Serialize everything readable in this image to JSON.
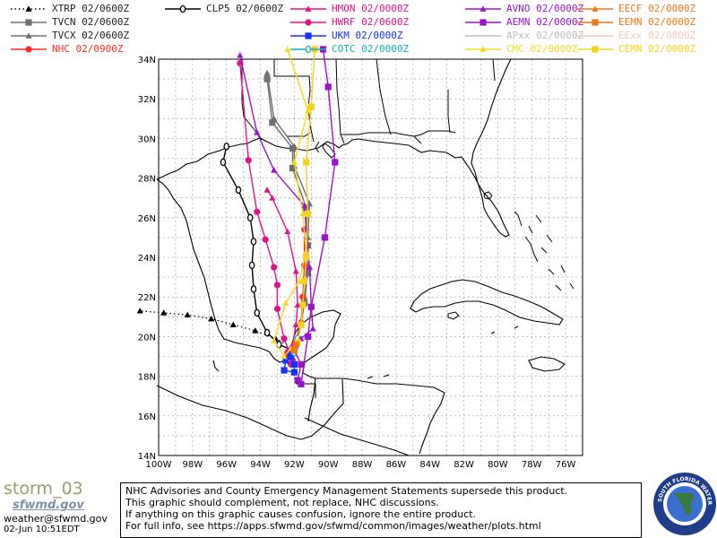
{
  "legend": [
    {
      "label": "XTRP 02/0600Z",
      "color": "#000000",
      "marker": "triangle",
      "dash": "dot"
    },
    {
      "label": "TVCN 02/0600Z",
      "color": "#707070",
      "marker": "square",
      "dash": "solid"
    },
    {
      "label": "TVCX 02/0600Z",
      "color": "#707070",
      "marker": "triangle",
      "dash": "solid"
    },
    {
      "label": "NHC 02/0900Z",
      "color": "#ff2a2a",
      "marker": "circle",
      "dash": "solid"
    },
    {
      "label": "CLP5 02/0600Z",
      "color": "#000000",
      "marker": "zero",
      "dash": "solid"
    },
    {
      "label": "HMON 02/0000Z",
      "color": "#e0148c",
      "marker": "triangle",
      "dash": "solid"
    },
    {
      "label": "HWRF 02/0600Z",
      "color": "#e0148c",
      "marker": "circle",
      "dash": "solid"
    },
    {
      "label": "UKM 02/0000Z",
      "color": "#1432ff",
      "marker": "square",
      "dash": "solid"
    },
    {
      "label": "COTC 02/0000Z",
      "color": "#14b4b4",
      "marker": "zero",
      "dash": "solid"
    },
    {
      "label": "AVNO 02/0000Z",
      "color": "#9a14c8",
      "marker": "triangle",
      "dash": "solid"
    },
    {
      "label": "AEMN 02/0000Z",
      "color": "#9a14c8",
      "marker": "square",
      "dash": "solid"
    },
    {
      "label": "APxx 02/0000Z",
      "color": "#bdbdbd",
      "marker": "none",
      "dash": "solid"
    },
    {
      "label": "CMC 02/0000Z",
      "color": "#f0dc1e",
      "marker": "triangle",
      "dash": "solid"
    },
    {
      "label": "EECF 02/0000Z",
      "color": "#f07814",
      "marker": "triangle",
      "dash": "solid"
    },
    {
      "label": "EEMN 02/0000Z",
      "color": "#f07814",
      "marker": "square",
      "dash": "solid"
    },
    {
      "label": "EExx 02/0000Z",
      "color": "#f5c8b4",
      "marker": "none",
      "dash": "solid"
    },
    {
      "label": "CEMN 02/0000Z",
      "color": "#f5d21e",
      "marker": "square",
      "dash": "solid"
    }
  ],
  "map": {
    "lat_labels": [
      "34N",
      "32N",
      "30N",
      "28N",
      "26N",
      "24N",
      "22N",
      "20N",
      "18N",
      "16N",
      "14N"
    ],
    "lon_labels": [
      "100W",
      "98W",
      "96W",
      "94W",
      "92W",
      "90W",
      "88W",
      "86W",
      "84W",
      "82W",
      "80W",
      "78W",
      "76W"
    ],
    "lat_range": [
      14,
      34
    ],
    "lon_range": [
      -100,
      -75
    ]
  },
  "tracks": [
    {
      "name": "XTRP",
      "color": "#000000",
      "marker": "triangle",
      "dash": "dot",
      "points": [
        [
          -92.0,
          19.4
        ],
        [
          -93.1,
          19.9
        ],
        [
          -94.3,
          20.3
        ],
        [
          -95.6,
          20.6
        ],
        [
          -96.9,
          20.9
        ],
        [
          -98.3,
          21.1
        ],
        [
          -99.7,
          21.2
        ],
        [
          -101.1,
          21.3
        ]
      ]
    },
    {
      "name": "CLP5",
      "color": "#000000",
      "marker": "zero",
      "dash": "solid",
      "points": [
        [
          -92.1,
          19.3
        ],
        [
          -92.9,
          19.6
        ],
        [
          -93.6,
          20.2
        ],
        [
          -94.2,
          21.2
        ],
        [
          -94.4,
          22.4
        ],
        [
          -94.5,
          23.6
        ],
        [
          -94.4,
          24.8
        ],
        [
          -94.6,
          26.0
        ],
        [
          -95.3,
          27.4
        ],
        [
          -96.2,
          28.8
        ],
        [
          -96.0,
          29.6
        ]
      ]
    },
    {
      "name": "TVCN",
      "color": "#707070",
      "marker": "square",
      "dash": "solid",
      "points": [
        [
          -92.0,
          19.3
        ],
        [
          -91.9,
          19.7
        ],
        [
          -91.6,
          20.6
        ],
        [
          -91.4,
          21.7
        ],
        [
          -91.2,
          23.2
        ],
        [
          -91.2,
          24.6
        ],
        [
          -91.3,
          26.5
        ],
        [
          -92.1,
          28.5
        ],
        [
          -92.1,
          29.5
        ],
        [
          -93.3,
          30.8
        ],
        [
          -93.6,
          33.0
        ]
      ]
    },
    {
      "name": "TVCX",
      "color": "#707070",
      "marker": "triangle",
      "dash": "solid",
      "points": [
        [
          -92.0,
          19.3
        ],
        [
          -91.9,
          19.8
        ],
        [
          -91.6,
          20.8
        ],
        [
          -91.4,
          22.0
        ],
        [
          -91.2,
          23.5
        ],
        [
          -91.2,
          25.0
        ],
        [
          -91.1,
          26.7
        ],
        [
          -92.0,
          28.6
        ],
        [
          -92.0,
          29.6
        ],
        [
          -93.2,
          31.0
        ],
        [
          -93.6,
          33.3
        ]
      ]
    },
    {
      "name": "NHC",
      "color": "#ff2a2a",
      "marker": "circle",
      "dash": "solid",
      "points": [
        [
          -92.4,
          19.2
        ],
        [
          -92.0,
          19.3
        ],
        [
          -91.8,
          19.8
        ],
        [
          -91.6,
          20.7
        ],
        [
          -91.5,
          22.0
        ],
        [
          -91.4,
          23.6
        ],
        [
          -91.4,
          25.4
        ]
      ]
    },
    {
      "name": "HMON",
      "color": "#e0148c",
      "marker": "triangle",
      "dash": "solid",
      "points": [
        [
          -92.3,
          19.3
        ],
        [
          -92.4,
          19.1
        ],
        [
          -92.1,
          19.6
        ],
        [
          -91.9,
          20.6
        ],
        [
          -91.8,
          21.6
        ],
        [
          -91.9,
          23.3
        ],
        [
          -92.4,
          25.3
        ],
        [
          -93.3,
          27.0
        ],
        [
          -93.6,
          27.4
        ]
      ]
    },
    {
      "name": "HWRF",
      "color": "#e0148c",
      "marker": "circle",
      "dash": "solid",
      "points": [
        [
          -92.3,
          19.3
        ],
        [
          -92.2,
          18.6
        ],
        [
          -92.1,
          18.8
        ],
        [
          -92.6,
          19.9
        ],
        [
          -93.0,
          21.4
        ],
        [
          -93.0,
          22.6
        ],
        [
          -93.2,
          23.5
        ],
        [
          -93.7,
          24.9
        ],
        [
          -94.2,
          26.3
        ],
        [
          -94.7,
          28.9
        ],
        [
          -95.2,
          33.8
        ]
      ]
    },
    {
      "name": "UKM",
      "color": "#1432ff",
      "marker": "square",
      "dash": "solid",
      "points": [
        [
          -92.1,
          19.3
        ],
        [
          -92.5,
          18.8
        ],
        [
          -92.6,
          18.3
        ],
        [
          -92.0,
          18.2
        ],
        [
          -92.0,
          18.6
        ],
        [
          -92.2,
          19.0
        ]
      ]
    },
    {
      "name": "COTC",
      "color": "#14b4b4",
      "marker": "zero",
      "dash": "solid",
      "points": [
        [
          -92.0,
          19.2
        ],
        [
          -91.9,
          19.5
        ],
        [
          -91.8,
          19.9
        ]
      ]
    },
    {
      "name": "AVNO",
      "color": "#9a14c8",
      "marker": "triangle",
      "dash": "solid",
      "points": [
        [
          -92.1,
          19.4
        ],
        [
          -91.6,
          19.9
        ],
        [
          -90.9,
          20.4
        ],
        [
          -91.0,
          21.5
        ],
        [
          -91.1,
          23.5
        ],
        [
          -91.3,
          25.5
        ],
        [
          -91.4,
          26.6
        ],
        [
          -93.2,
          28.4
        ],
        [
          -94.2,
          30.3
        ],
        [
          -95.2,
          34.2
        ]
      ]
    },
    {
      "name": "AEMN",
      "color": "#9a14c8",
      "marker": "square",
      "dash": "solid",
      "points": [
        [
          -92.0,
          19.3
        ],
        [
          -91.6,
          18.6
        ],
        [
          -91.8,
          17.8
        ],
        [
          -91.6,
          17.6
        ],
        [
          -91.2,
          20.0
        ],
        [
          -91.0,
          21.5
        ],
        [
          -90.2,
          25.0
        ],
        [
          -89.6,
          28.8
        ],
        [
          -90.0,
          32.6
        ],
        [
          -90.3,
          34.5
        ]
      ]
    },
    {
      "name": "CMC",
      "color": "#f0dc1e",
      "marker": "triangle",
      "dash": "solid",
      "points": [
        [
          -92.2,
          19.4
        ],
        [
          -92.6,
          19.0
        ],
        [
          -93.2,
          19.8
        ],
        [
          -92.5,
          21.7
        ],
        [
          -91.7,
          22.8
        ],
        [
          -91.3,
          24.3
        ],
        [
          -91.5,
          26.2
        ],
        [
          -92.0,
          28.8
        ],
        [
          -91.2,
          31.4
        ],
        [
          -92.4,
          34.5
        ]
      ]
    },
    {
      "name": "CEMN",
      "color": "#f5d21e",
      "marker": "square",
      "dash": "solid",
      "points": [
        [
          -92.0,
          19.3
        ],
        [
          -91.8,
          19.7
        ],
        [
          -91.6,
          20.6
        ],
        [
          -91.5,
          21.6
        ],
        [
          -91.4,
          22.8
        ],
        [
          -91.3,
          24.0
        ],
        [
          -91.2,
          26.2
        ],
        [
          -91.3,
          28.8
        ],
        [
          -91.0,
          31.6
        ],
        [
          -90.8,
          34.5
        ]
      ]
    },
    {
      "name": "EECF",
      "color": "#f07814",
      "marker": "triangle",
      "dash": "solid",
      "points": [
        [
          -92.0,
          19.3
        ],
        [
          -91.9,
          19.6
        ]
      ]
    },
    {
      "name": "EEMN",
      "color": "#f07814",
      "marker": "square",
      "dash": "solid",
      "points": [
        [
          -92.0,
          19.3
        ],
        [
          -91.9,
          19.6
        ]
      ]
    }
  ],
  "branding": {
    "name": "storm_03",
    "agency": "sfwmd.gov",
    "email": "weather@sfwmd.gov",
    "timestamp": "02-Jun 10:51EDT"
  },
  "disclaimer": [
    "NHC Advisories and County Emergency Management Statements supersede this product.",
    "This graphic should complement, not replace, NHC discussions.",
    "If anything on this graphic causes confusion, ignore the entire product.",
    "For full info, see  https://apps.sfwmd.gov/sfwmd/common/images/weather/plots.html"
  ],
  "logo": {
    "text": "SOUTH FLORIDA WATER MANAGEMENT DISTRICT",
    "colors": {
      "outer": "#1f3d8a",
      "inner": "#ffffff",
      "land": "#3a7a3a",
      "water": "#3a6fd0"
    }
  }
}
